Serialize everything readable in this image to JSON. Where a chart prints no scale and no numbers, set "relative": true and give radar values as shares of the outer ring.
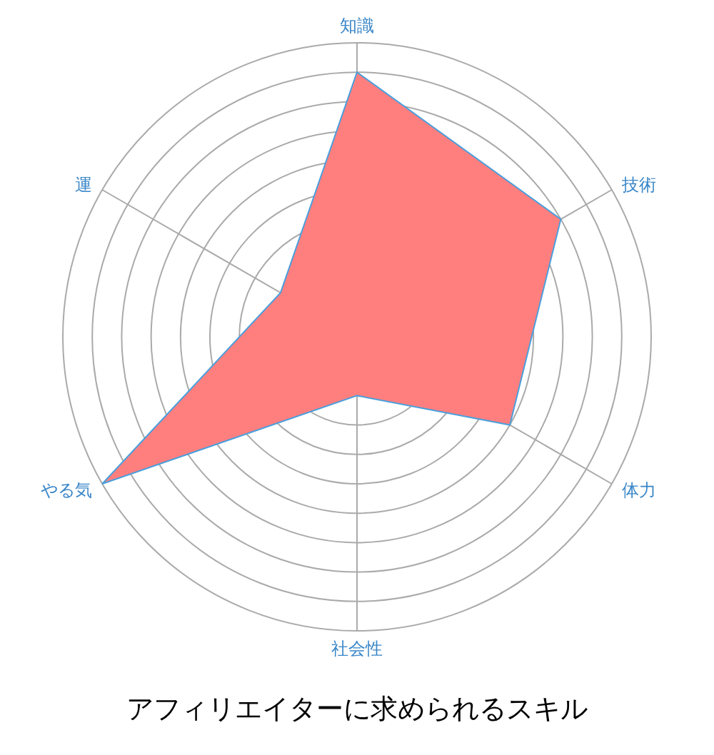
{
  "chart_data": {
    "type": "radar",
    "title": "アフィリエイターに求められるスキル",
    "categories": [
      "知識",
      "技術",
      "体力",
      "社会性",
      "やる気",
      "運"
    ],
    "relative": true,
    "grid": true,
    "series": [
      {
        "color": "#ff7f7f",
        "values": [
          0.9,
          0.8,
          0.6,
          0.2,
          1.0,
          0.3
        ]
      }
    ]
  }
}
